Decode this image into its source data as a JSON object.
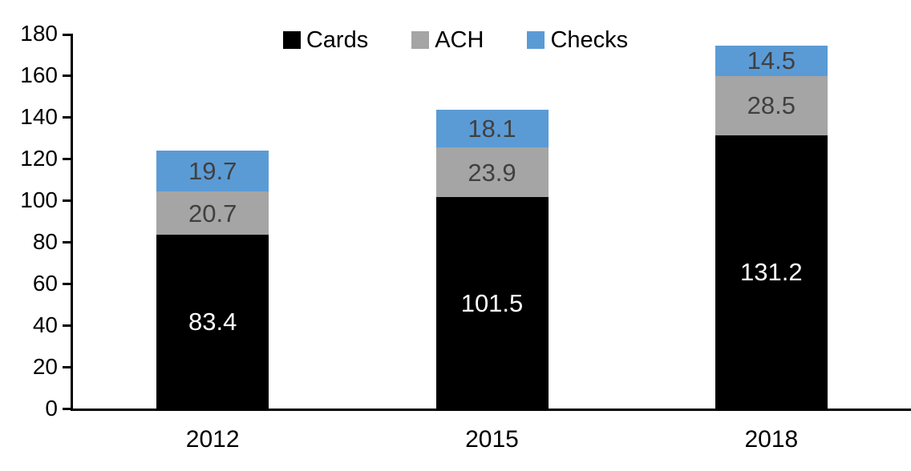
{
  "chart_data": {
    "type": "bar",
    "stacked": true,
    "title": "",
    "categories": [
      "2012",
      "2015",
      "2018"
    ],
    "series": [
      {
        "name": "Cards",
        "color": "#000000",
        "label_color": "#ffffff",
        "values": [
          83.4,
          101.5,
          131.2
        ]
      },
      {
        "name": "ACH",
        "color": "#a5a5a5",
        "label_color": "#404040",
        "values": [
          20.7,
          23.9,
          28.5
        ]
      },
      {
        "name": "Checks",
        "color": "#5b9bd5",
        "label_color": "#404040",
        "values": [
          19.7,
          18.1,
          14.5
        ]
      }
    ],
    "totals": [
      123.8,
      143.5,
      174.2
    ],
    "ylim": [
      0,
      180
    ],
    "yticks": [
      0,
      20,
      40,
      60,
      80,
      100,
      120,
      140,
      160,
      180
    ],
    "grid": false,
    "legend_position": "top-center",
    "axis_color": "#000000",
    "value_decimals": 1
  }
}
